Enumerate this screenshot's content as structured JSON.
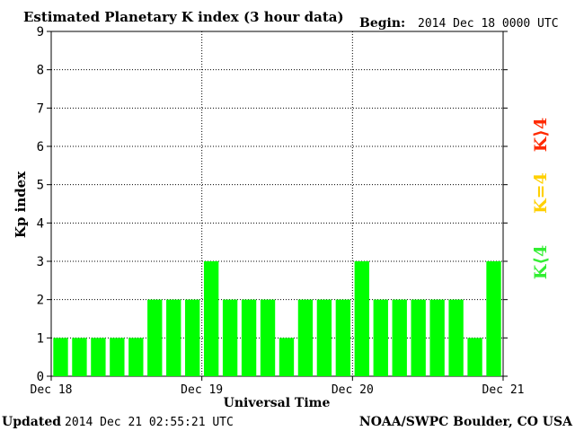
{
  "header": {
    "title": "Estimated Planetary K index (3 hour data)",
    "begin_label": "Begin:",
    "begin_value": "2014 Dec 18 0000 UTC"
  },
  "footer": {
    "updated_label": "Updated",
    "updated_value": "2014 Dec 21 02:55:21 UTC",
    "credit": "NOAA/SWPC Boulder, CO USA"
  },
  "legend": {
    "high": {
      "text": "K>4",
      "color": "#ff2a00"
    },
    "equal": {
      "text": "K=4",
      "color": "#ffd000"
    },
    "low": {
      "text": "K<4",
      "color": "#33ee33"
    }
  },
  "colors": {
    "bar": "#00ff00",
    "axis": "#000000",
    "grid": "#000000"
  },
  "chart_data": {
    "type": "bar",
    "title": "Estimated Planetary K index (3 hour data)",
    "xlabel": "Universal Time",
    "ylabel": "Kp index",
    "ylim": [
      0,
      9
    ],
    "yticks": [
      "0",
      "1",
      "2",
      "3",
      "4",
      "5",
      "6",
      "7",
      "8",
      "9"
    ],
    "day_ticks": [
      "Dec 18",
      "Dec 19",
      "Dec 20",
      "Dec 21"
    ],
    "values": [
      1,
      1,
      1,
      1,
      1,
      2,
      2,
      2,
      3,
      2,
      2,
      2,
      1,
      2,
      2,
      2,
      3,
      2,
      2,
      2,
      2,
      2,
      1,
      3
    ],
    "bars_per_day": 8,
    "grid": "vertical dotted at day boundaries, horizontal dotted at each integer"
  }
}
